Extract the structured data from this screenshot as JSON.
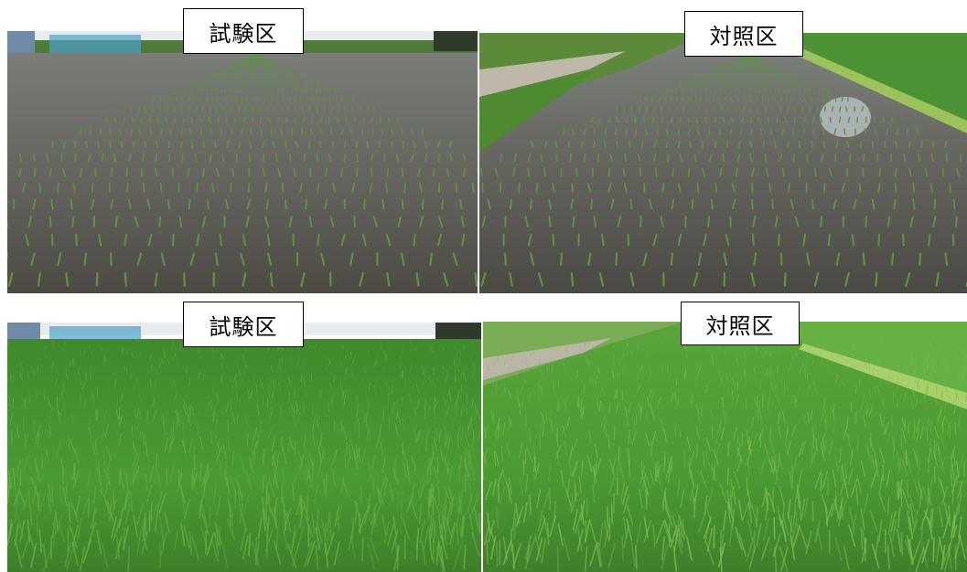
{
  "panels": [
    {
      "label": "試験区",
      "stage": "flooded"
    },
    {
      "label": "対照区",
      "stage": "flooded"
    },
    {
      "label": "試験区",
      "stage": "grown"
    },
    {
      "label": "対照区",
      "stage": "grown"
    }
  ],
  "colors": {
    "sky": "#e9edf0",
    "water": "#5c5a54",
    "seedling": "#4f8a3a",
    "paddy_grown": "#4a8f2f",
    "paddy_light": "#7cb84d"
  }
}
